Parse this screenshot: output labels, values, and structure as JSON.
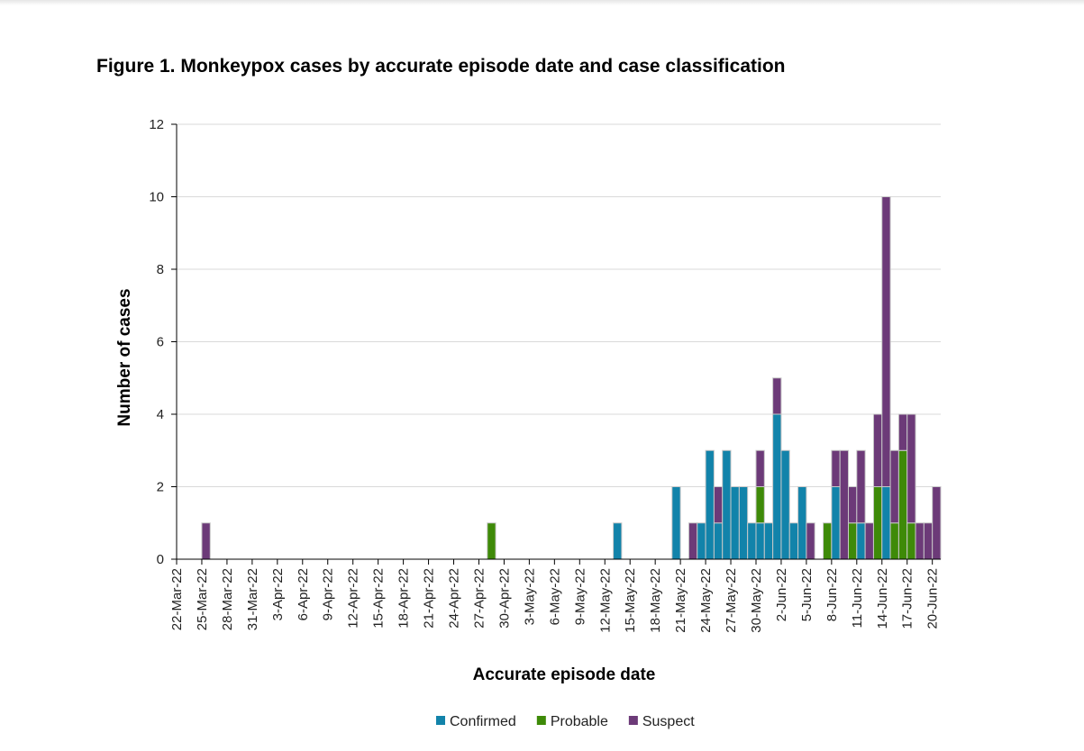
{
  "chart_data": {
    "type": "bar",
    "stacked": true,
    "title": "Figure 1. Monkeypox cases by accurate episode date and case classification",
    "xlabel": "Accurate episode date",
    "ylabel": "Number of cases",
    "ylim": [
      0,
      12
    ],
    "yticks": [
      0,
      2,
      4,
      6,
      8,
      10,
      12
    ],
    "grid": true,
    "legend_position": "bottom",
    "tick_every": 3,
    "categories": [
      "22-Mar-22",
      "23-Mar-22",
      "24-Mar-22",
      "25-Mar-22",
      "26-Mar-22",
      "27-Mar-22",
      "28-Mar-22",
      "29-Mar-22",
      "30-Mar-22",
      "31-Mar-22",
      "1-Apr-22",
      "2-Apr-22",
      "3-Apr-22",
      "4-Apr-22",
      "5-Apr-22",
      "6-Apr-22",
      "7-Apr-22",
      "8-Apr-22",
      "9-Apr-22",
      "10-Apr-22",
      "11-Apr-22",
      "12-Apr-22",
      "13-Apr-22",
      "14-Apr-22",
      "15-Apr-22",
      "16-Apr-22",
      "17-Apr-22",
      "18-Apr-22",
      "19-Apr-22",
      "20-Apr-22",
      "21-Apr-22",
      "22-Apr-22",
      "23-Apr-22",
      "24-Apr-22",
      "25-Apr-22",
      "26-Apr-22",
      "27-Apr-22",
      "28-Apr-22",
      "29-Apr-22",
      "30-Apr-22",
      "1-May-22",
      "2-May-22",
      "3-May-22",
      "4-May-22",
      "5-May-22",
      "6-May-22",
      "7-May-22",
      "8-May-22",
      "9-May-22",
      "10-May-22",
      "11-May-22",
      "12-May-22",
      "13-May-22",
      "14-May-22",
      "15-May-22",
      "16-May-22",
      "17-May-22",
      "18-May-22",
      "19-May-22",
      "20-May-22",
      "21-May-22",
      "22-May-22",
      "23-May-22",
      "24-May-22",
      "25-May-22",
      "26-May-22",
      "27-May-22",
      "28-May-22",
      "29-May-22",
      "30-May-22",
      "31-May-22",
      "1-Jun-22",
      "2-Jun-22",
      "3-Jun-22",
      "4-Jun-22",
      "5-Jun-22",
      "6-Jun-22",
      "7-Jun-22",
      "8-Jun-22",
      "9-Jun-22",
      "10-Jun-22",
      "11-Jun-22",
      "12-Jun-22",
      "13-Jun-22",
      "14-Jun-22",
      "15-Jun-22",
      "16-Jun-22",
      "17-Jun-22",
      "18-Jun-22",
      "19-Jun-22",
      "20-Jun-22"
    ],
    "series": [
      {
        "name": "Confirmed",
        "color": "#1283aa",
        "values": [
          0,
          0,
          0,
          0,
          0,
          0,
          0,
          0,
          0,
          0,
          0,
          0,
          0,
          0,
          0,
          0,
          0,
          0,
          0,
          0,
          0,
          0,
          0,
          0,
          0,
          0,
          0,
          0,
          0,
          0,
          0,
          0,
          0,
          0,
          0,
          0,
          0,
          0,
          0,
          0,
          0,
          0,
          0,
          0,
          0,
          0,
          0,
          0,
          0,
          0,
          0,
          0,
          1,
          0,
          0,
          0,
          0,
          0,
          0,
          2,
          0,
          0,
          1,
          3,
          1,
          3,
          2,
          2,
          1,
          1,
          1,
          4,
          3,
          1,
          2,
          0,
          0,
          0,
          2,
          0,
          0,
          1,
          0,
          0,
          2,
          0,
          0,
          0,
          0,
          0,
          0
        ]
      },
      {
        "name": "Probable",
        "color": "#3e8a08",
        "values": [
          0,
          0,
          0,
          0,
          0,
          0,
          0,
          0,
          0,
          0,
          0,
          0,
          0,
          0,
          0,
          0,
          0,
          0,
          0,
          0,
          0,
          0,
          0,
          0,
          0,
          0,
          0,
          0,
          0,
          0,
          0,
          0,
          0,
          0,
          0,
          0,
          0,
          1,
          0,
          0,
          0,
          0,
          0,
          0,
          0,
          0,
          0,
          0,
          0,
          0,
          0,
          0,
          0,
          0,
          0,
          0,
          0,
          0,
          0,
          0,
          0,
          0,
          0,
          0,
          0,
          0,
          0,
          0,
          0,
          1,
          0,
          0,
          0,
          0,
          0,
          0,
          0,
          1,
          0,
          0,
          1,
          0,
          0,
          2,
          0,
          1,
          3,
          1,
          0,
          0,
          0
        ]
      },
      {
        "name": "Suspect",
        "color": "#6c3a78",
        "values": [
          0,
          0,
          0,
          1,
          0,
          0,
          0,
          0,
          0,
          0,
          0,
          0,
          0,
          0,
          0,
          0,
          0,
          0,
          0,
          0,
          0,
          0,
          0,
          0,
          0,
          0,
          0,
          0,
          0,
          0,
          0,
          0,
          0,
          0,
          0,
          0,
          0,
          0,
          0,
          0,
          0,
          0,
          0,
          0,
          0,
          0,
          0,
          0,
          0,
          0,
          0,
          0,
          0,
          0,
          0,
          0,
          0,
          0,
          0,
          0,
          0,
          1,
          0,
          0,
          1,
          0,
          0,
          0,
          0,
          1,
          0,
          1,
          0,
          0,
          0,
          1,
          0,
          0,
          1,
          3,
          1,
          2,
          1,
          2,
          8,
          2,
          1,
          3,
          1,
          1,
          2
        ]
      }
    ]
  }
}
